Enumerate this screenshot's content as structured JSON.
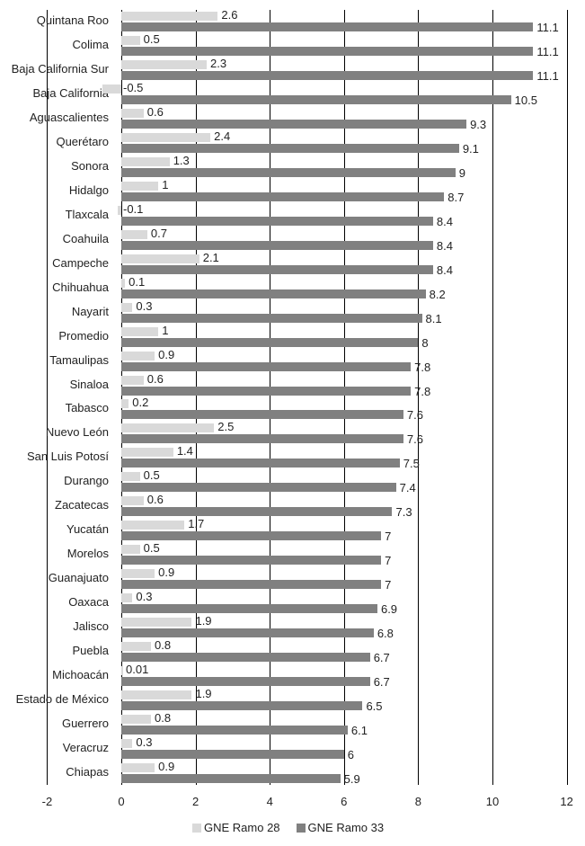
{
  "chart_data": {
    "type": "bar",
    "orientation": "horizontal",
    "title": "",
    "xlabel": "",
    "ylabel": "",
    "xlim": [
      -2,
      12
    ],
    "x_ticks": [
      "-2",
      "0",
      "2",
      "4",
      "6",
      "8",
      "10",
      "12"
    ],
    "grid": true,
    "legend_position": "bottom",
    "categories": [
      "Quintana Roo",
      "Colima",
      "Baja California Sur",
      "Baja California",
      "Aguascalientes",
      "Querétaro",
      "Sonora",
      "Hidalgo",
      "Tlaxcala",
      "Coahuila",
      "Campeche",
      "Chihuahua",
      "Nayarit",
      "Promedio",
      "Tamaulipas",
      "Sinaloa",
      "Tabasco",
      "Nuevo León",
      "San Luis Potosí",
      "Durango",
      "Zacatecas",
      "Yucatán",
      "Morelos",
      "Guanajuato",
      "Oaxaca",
      "Jalisco",
      "Puebla",
      "Michoacán",
      "Estado de México",
      "Guerrero",
      "Veracruz",
      "Chiapas"
    ],
    "series": [
      {
        "name": "GNE Ramo 28",
        "color": "#d9d9d9",
        "values": [
          2.6,
          0.5,
          2.3,
          -0.5,
          0.6,
          2.4,
          1.3,
          1,
          -0.1,
          0.7,
          2.1,
          0.1,
          0.3,
          1,
          0.9,
          0.6,
          0.2,
          2.5,
          1.4,
          0.5,
          0.6,
          1.7,
          0.5,
          0.9,
          0.3,
          1.9,
          0.8,
          0.01,
          1.9,
          0.8,
          0.3,
          0.9
        ],
        "labels": [
          "2.6",
          "0.5",
          "2.3",
          "-0.5",
          "0.6",
          "2.4",
          "1.3",
          "1",
          "-0.1",
          "0.7",
          "2.1",
          "0.1",
          "0.3",
          "1",
          "0.9",
          "0.6",
          "0.2",
          "2.5",
          "1.4",
          "0.5",
          "0.6",
          "1.7",
          "0.5",
          "0.9",
          "0.3",
          "1.9",
          "0.8",
          "0.01",
          "1.9",
          "0.8",
          "0.3",
          "0.9"
        ]
      },
      {
        "name": "GNE Ramo 33",
        "color": "#808080",
        "values": [
          11.1,
          11.1,
          11.1,
          10.5,
          9.3,
          9.1,
          9,
          8.7,
          8.4,
          8.4,
          8.4,
          8.2,
          8.1,
          8,
          7.8,
          7.8,
          7.6,
          7.6,
          7.5,
          7.4,
          7.3,
          7,
          7,
          7,
          6.9,
          6.8,
          6.7,
          6.7,
          6.5,
          6.1,
          6,
          5.9
        ],
        "labels": [
          "11.1",
          "11.1",
          "11.1",
          "10.5",
          "9.3",
          "9.1",
          "9",
          "8.7",
          "8.4",
          "8.4",
          "8.4",
          "8.2",
          "8.1",
          "8",
          "7.8",
          "7.8",
          "7.6",
          "7.6",
          "7.5",
          "7.4",
          "7.3",
          "7",
          "7",
          "7",
          "6.9",
          "6.8",
          "6.7",
          "6.7",
          "6.5",
          "6.1",
          "6",
          "5.9"
        ]
      }
    ]
  },
  "legend": {
    "items": [
      {
        "label": "GNE Ramo 28",
        "color": "#d9d9d9"
      },
      {
        "label": "GNE Ramo 33",
        "color": "#808080"
      }
    ]
  }
}
